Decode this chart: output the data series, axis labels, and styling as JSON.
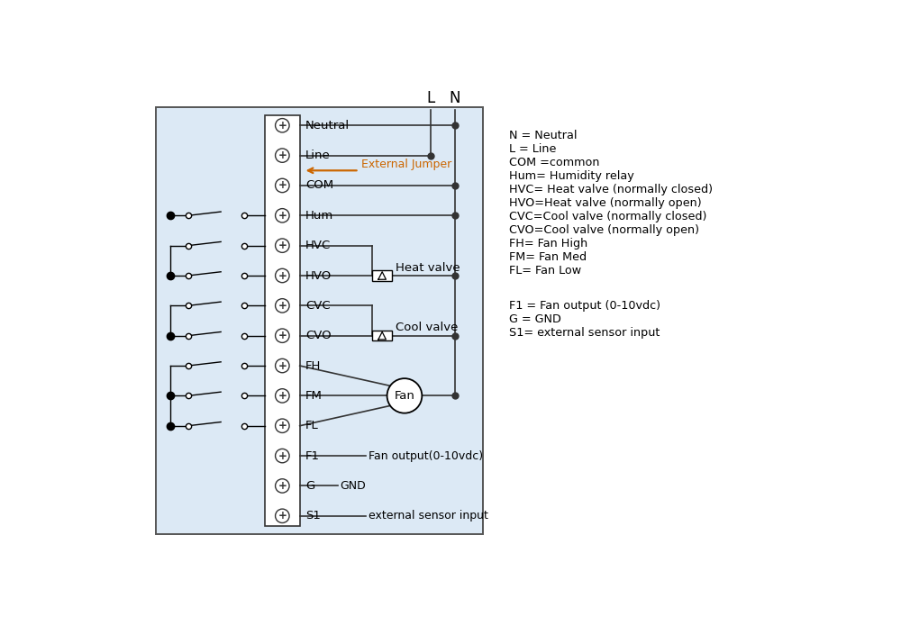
{
  "bg_color": "#ffffff",
  "box_bg": "#dce9f5",
  "box_color": "#555555",
  "terminal_color": "#333333",
  "wire_color": "#333333",
  "jumper_color": "#cc6600",
  "terminal_labels": [
    "Neutral",
    "Line",
    "COM",
    "Hum",
    "HVC",
    "HVO",
    "CVC",
    "CVO",
    "FH",
    "FM",
    "FL",
    "F1",
    "G",
    "S1"
  ],
  "legend_lines": [
    "N = Neutral",
    "L = Line",
    "COM =common",
    "Hum= Humidity relay",
    "HVC= Heat valve (normally closed)",
    "HVO=Heat valve (normally open)",
    "CVC=Cool valve (normally closed)",
    "CVO=Cool valve (normally open)",
    "FH= Fan High",
    "FM= Fan Med",
    "FL= Fan Low",
    "",
    "F1 = Fan output (0-10vdc)",
    "G = GND",
    "S1= external sensor input"
  ],
  "font_size": 9.5,
  "lw": 1.2
}
